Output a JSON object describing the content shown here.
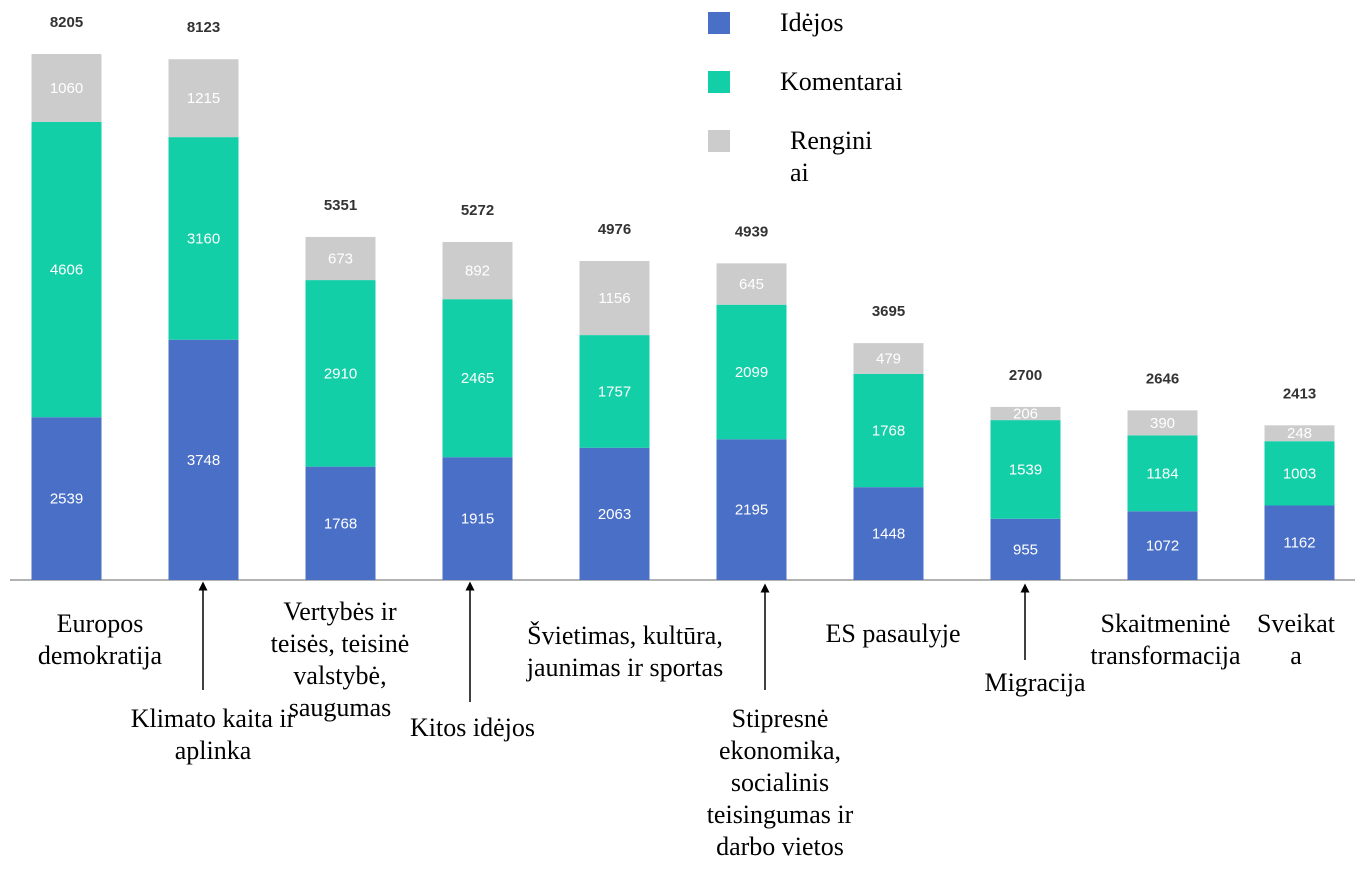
{
  "chart_data": {
    "type": "stacked_bar",
    "categories": [
      "Europos demokratija",
      "Klimato kaita ir aplinka",
      "Vertybės ir teisės, teisinė valstybė, saugumas",
      "Kitos idėjos",
      "Švietimas, kultūra, jaunimas ir sportas",
      "Stipresnė ekonomika, socialinis teisingumas ir darbo vietos",
      "ES pasaulyje",
      "Migracija",
      "Skaitmeninė transformacija",
      "Sveikata"
    ],
    "series": [
      {
        "name": "Idėjos",
        "color": "#4a6fc7",
        "values": [
          2539,
          3748,
          1768,
          1915,
          2063,
          2195,
          1448,
          955,
          1072,
          1162
        ]
      },
      {
        "name": "Komentarai",
        "color": "#12cfa8",
        "values": [
          4606,
          3160,
          2910,
          2465,
          1757,
          2099,
          1768,
          1539,
          1184,
          1003
        ]
      },
      {
        "name": "Renginiai",
        "color": "#cccccc",
        "values": [
          1060,
          1215,
          673,
          892,
          1156,
          645,
          479,
          206,
          390,
          248
        ]
      }
    ],
    "totals": [
      8205,
      8123,
      5351,
      5272,
      4976,
      4939,
      3695,
      2700,
      2646,
      2413
    ],
    "ylim": [
      0,
      9000
    ]
  }
}
